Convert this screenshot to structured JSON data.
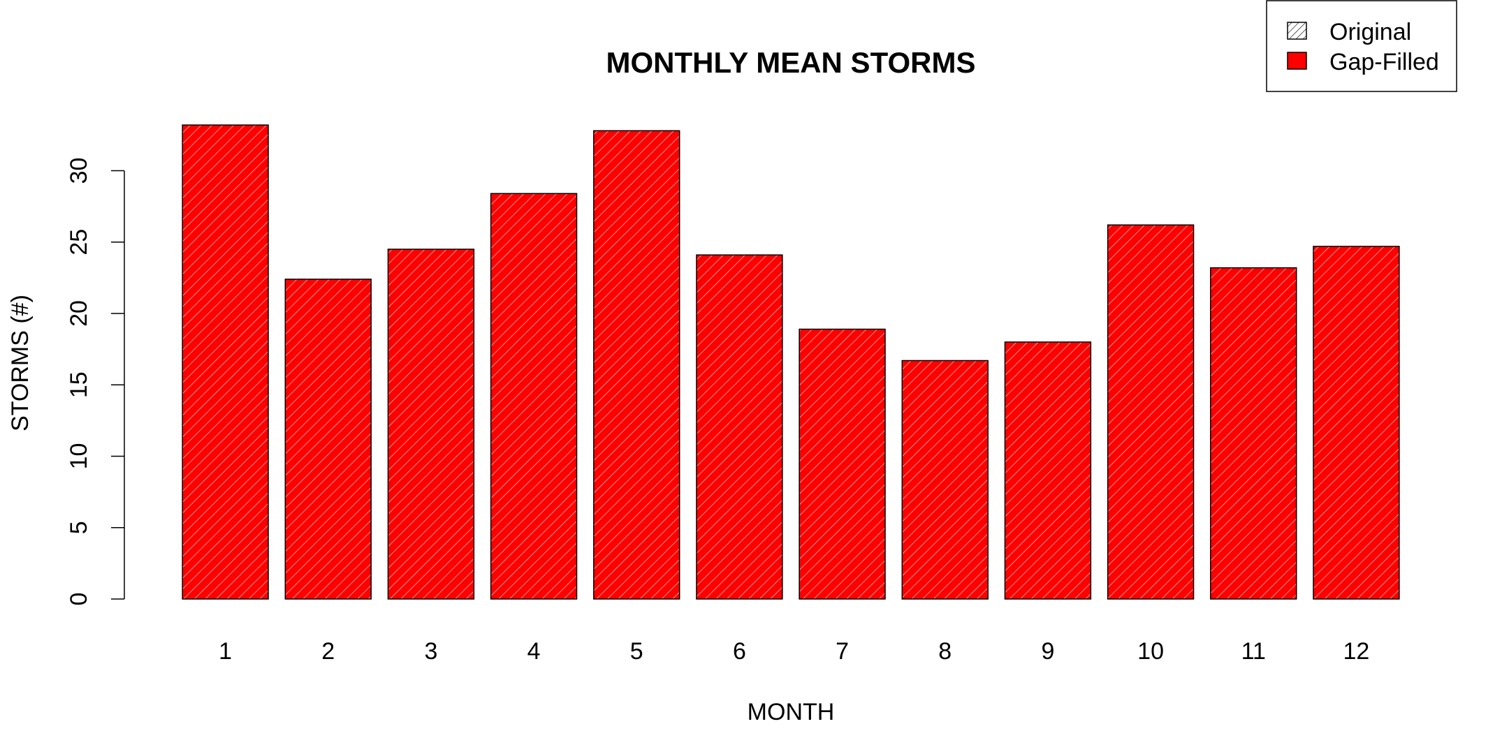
{
  "chart_data": {
    "type": "bar",
    "title": "MONTHLY MEAN STORMS",
    "xlabel": "MONTH",
    "ylabel": "STORMS (#)",
    "categories": [
      "1",
      "2",
      "3",
      "4",
      "5",
      "6",
      "7",
      "8",
      "9",
      "10",
      "11",
      "12"
    ],
    "series": [
      {
        "name": "Gap-Filled",
        "values": [
          33.2,
          22.4,
          24.5,
          28.4,
          32.8,
          24.1,
          18.9,
          16.7,
          18.0,
          26.2,
          23.2,
          24.7
        ]
      }
    ],
    "ylim": [
      0,
      35
    ],
    "yticks": [
      0,
      5,
      10,
      15,
      20,
      25,
      30
    ],
    "ytick_labels": [
      "0",
      "5",
      "10",
      "15",
      "20",
      "25",
      "30"
    ],
    "grid": false,
    "legend": {
      "placement": "top-right",
      "entries": [
        {
          "label": "Original",
          "style": "hatched",
          "color": "#ffffff"
        },
        {
          "label": "Gap-Filled",
          "style": "solid",
          "color": "#ff0000"
        }
      ]
    },
    "colors": {
      "bar_fill": "#ff0000",
      "bar_hatch": "#ffb3b3",
      "bar_border": "#000000"
    }
  }
}
